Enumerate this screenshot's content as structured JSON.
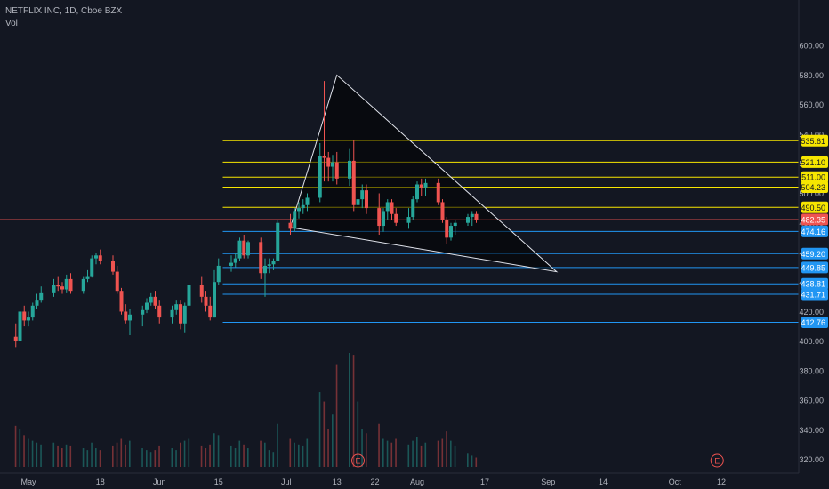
{
  "header": {
    "symbol_line": "NETFLIX INC, 1D, Cboe BZX",
    "vol_label": "Vol"
  },
  "colors": {
    "background": "#131722",
    "up": "#26a69a",
    "down": "#ef5350",
    "yellow_level": "#f7e600",
    "blue_level": "#2196f3",
    "current_line": "#ef5350",
    "triangle": "#e0e3eb",
    "axis_text": "#b2b5be"
  },
  "chart_data": {
    "type": "candlestick",
    "ylim": [
      315,
      620
    ],
    "y_ticks": [
      "600.00",
      "580.00",
      "560.00",
      "540.00",
      "520.00",
      "500.00",
      "480.00",
      "460.00",
      "440.00",
      "420.00",
      "400.00",
      "380.00",
      "360.00",
      "340.00",
      "320.00"
    ],
    "x_ticks": [
      {
        "label": "May",
        "day": 0
      },
      {
        "label": "18",
        "day": 17
      },
      {
        "label": "Jun",
        "day": 31
      },
      {
        "label": "15",
        "day": 45
      },
      {
        "label": "Jul",
        "day": 61
      },
      {
        "label": "13",
        "day": 73
      },
      {
        "label": "22",
        "day": 82
      },
      {
        "label": "Aug",
        "day": 92
      },
      {
        "label": "17",
        "day": 108
      },
      {
        "label": "Sep",
        "day": 123
      },
      {
        "label": "14",
        "day": 136
      },
      {
        "label": "Oct",
        "day": 153
      },
      {
        "label": "12",
        "day": 164
      }
    ],
    "candles": [
      {
        "day": -3,
        "o": 403,
        "h": 412,
        "l": 396,
        "c": 400
      },
      {
        "day": -2,
        "o": 400,
        "h": 422,
        "l": 398,
        "c": 420
      },
      {
        "day": -1,
        "o": 420,
        "h": 424,
        "l": 410,
        "c": 414
      },
      {
        "day": 0,
        "o": 414,
        "h": 420,
        "l": 410,
        "c": 416
      },
      {
        "day": 1,
        "o": 416,
        "h": 426,
        "l": 414,
        "c": 424
      },
      {
        "day": 2,
        "o": 424,
        "h": 432,
        "l": 422,
        "c": 428
      },
      {
        "day": 3,
        "o": 428,
        "h": 437,
        "l": 426,
        "c": 433
      },
      {
        "day": 6,
        "o": 433,
        "h": 442,
        "l": 430,
        "c": 438
      },
      {
        "day": 7,
        "o": 438,
        "h": 444,
        "l": 434,
        "c": 437
      },
      {
        "day": 8,
        "o": 437,
        "h": 440,
        "l": 432,
        "c": 435
      },
      {
        "day": 9,
        "o": 435,
        "h": 445,
        "l": 433,
        "c": 442
      },
      {
        "day": 10,
        "o": 442,
        "h": 446,
        "l": 432,
        "c": 434
      },
      {
        "day": 13,
        "o": 434,
        "h": 444,
        "l": 432,
        "c": 442
      },
      {
        "day": 14,
        "o": 442,
        "h": 448,
        "l": 440,
        "c": 444
      },
      {
        "day": 15,
        "o": 444,
        "h": 458,
        "l": 443,
        "c": 456
      },
      {
        "day": 16,
        "o": 456,
        "h": 460,
        "l": 452,
        "c": 458
      },
      {
        "day": 17,
        "o": 458,
        "h": 462,
        "l": 452,
        "c": 454
      },
      {
        "day": 20,
        "o": 454,
        "h": 458,
        "l": 445,
        "c": 447
      },
      {
        "day": 21,
        "o": 447,
        "h": 451,
        "l": 432,
        "c": 434
      },
      {
        "day": 22,
        "o": 434,
        "h": 436,
        "l": 418,
        "c": 420
      },
      {
        "day": 23,
        "o": 420,
        "h": 425,
        "l": 412,
        "c": 414
      },
      {
        "day": 24,
        "o": 414,
        "h": 422,
        "l": 404,
        "c": 418
      },
      {
        "day": 27,
        "o": 418,
        "h": 424,
        "l": 410,
        "c": 421
      },
      {
        "day": 28,
        "o": 421,
        "h": 429,
        "l": 419,
        "c": 426
      },
      {
        "day": 29,
        "o": 426,
        "h": 433,
        "l": 424,
        "c": 430
      },
      {
        "day": 30,
        "o": 430,
        "h": 434,
        "l": 422,
        "c": 424
      },
      {
        "day": 31,
        "o": 424,
        "h": 428,
        "l": 412,
        "c": 416
      },
      {
        "day": 34,
        "o": 416,
        "h": 424,
        "l": 412,
        "c": 421
      },
      {
        "day": 35,
        "o": 421,
        "h": 428,
        "l": 418,
        "c": 425
      },
      {
        "day": 36,
        "o": 425,
        "h": 428,
        "l": 408,
        "c": 412
      },
      {
        "day": 37,
        "o": 412,
        "h": 426,
        "l": 406,
        "c": 424
      },
      {
        "day": 38,
        "o": 424,
        "h": 440,
        "l": 422,
        "c": 438
      },
      {
        "day": 41,
        "o": 438,
        "h": 444,
        "l": 426,
        "c": 430
      },
      {
        "day": 42,
        "o": 430,
        "h": 434,
        "l": 420,
        "c": 424
      },
      {
        "day": 43,
        "o": 424,
        "h": 430,
        "l": 414,
        "c": 416
      },
      {
        "day": 44,
        "o": 416,
        "h": 448,
        "l": 416,
        "c": 440
      },
      {
        "day": 45,
        "o": 440,
        "h": 456,
        "l": 438,
        "c": 451
      },
      {
        "day": 48,
        "o": 451,
        "h": 458,
        "l": 447,
        "c": 453
      },
      {
        "day": 49,
        "o": 453,
        "h": 460,
        "l": 450,
        "c": 456
      },
      {
        "day": 50,
        "o": 456,
        "h": 470,
        "l": 454,
        "c": 468
      },
      {
        "day": 51,
        "o": 468,
        "h": 472,
        "l": 456,
        "c": 458
      },
      {
        "day": 52,
        "o": 458,
        "h": 468,
        "l": 456,
        "c": 467
      },
      {
        "day": 55,
        "o": 467,
        "h": 470,
        "l": 442,
        "c": 446
      },
      {
        "day": 56,
        "o": 446,
        "h": 456,
        "l": 430,
        "c": 451
      },
      {
        "day": 57,
        "o": 451,
        "h": 456,
        "l": 446,
        "c": 452
      },
      {
        "day": 58,
        "o": 452,
        "h": 456,
        "l": 448,
        "c": 454
      },
      {
        "day": 59,
        "o": 454,
        "h": 482,
        "l": 454,
        "c": 480
      },
      {
        "day": 62,
        "o": 480,
        "h": 486,
        "l": 472,
        "c": 476
      },
      {
        "day": 63,
        "o": 476,
        "h": 490,
        "l": 474,
        "c": 488
      },
      {
        "day": 64,
        "o": 488,
        "h": 494,
        "l": 483,
        "c": 490
      },
      {
        "day": 65,
        "o": 490,
        "h": 496,
        "l": 486,
        "c": 492
      },
      {
        "day": 66,
        "o": 492,
        "h": 500,
        "l": 488,
        "c": 497
      },
      {
        "day": 69,
        "o": 497,
        "h": 534,
        "l": 494,
        "c": 525
      },
      {
        "day": 70,
        "o": 525,
        "h": 576,
        "l": 508,
        "c": 524
      },
      {
        "day": 71,
        "o": 524,
        "h": 528,
        "l": 508,
        "c": 518
      },
      {
        "day": 72,
        "o": 518,
        "h": 526,
        "l": 508,
        "c": 521
      },
      {
        "day": 73,
        "o": 521,
        "h": 528,
        "l": 506,
        "c": 510
      },
      {
        "day": 76,
        "o": 510,
        "h": 530,
        "l": 505,
        "c": 522
      },
      {
        "day": 77,
        "o": 522,
        "h": 536,
        "l": 488,
        "c": 492
      },
      {
        "day": 78,
        "o": 492,
        "h": 500,
        "l": 486,
        "c": 496
      },
      {
        "day": 79,
        "o": 496,
        "h": 506,
        "l": 490,
        "c": 502
      },
      {
        "day": 80,
        "o": 502,
        "h": 506,
        "l": 486,
        "c": 490
      },
      {
        "day": 83,
        "o": 490,
        "h": 500,
        "l": 472,
        "c": 478
      },
      {
        "day": 84,
        "o": 478,
        "h": 490,
        "l": 474,
        "c": 488
      },
      {
        "day": 85,
        "o": 488,
        "h": 496,
        "l": 482,
        "c": 494
      },
      {
        "day": 86,
        "o": 494,
        "h": 496,
        "l": 482,
        "c": 486
      },
      {
        "day": 87,
        "o": 486,
        "h": 490,
        "l": 478,
        "c": 480
      },
      {
        "day": 90,
        "o": 480,
        "h": 490,
        "l": 476,
        "c": 484
      },
      {
        "day": 91,
        "o": 484,
        "h": 498,
        "l": 482,
        "c": 496
      },
      {
        "day": 92,
        "o": 496,
        "h": 508,
        "l": 494,
        "c": 506
      },
      {
        "day": 93,
        "o": 506,
        "h": 510,
        "l": 498,
        "c": 504
      },
      {
        "day": 94,
        "o": 504,
        "h": 510,
        "l": 498,
        "c": 507
      },
      {
        "day": 97,
        "o": 507,
        "h": 510,
        "l": 492,
        "c": 494
      },
      {
        "day": 98,
        "o": 494,
        "h": 496,
        "l": 480,
        "c": 482
      },
      {
        "day": 99,
        "o": 482,
        "h": 484,
        "l": 466,
        "c": 470
      },
      {
        "day": 100,
        "o": 470,
        "h": 480,
        "l": 468,
        "c": 478
      },
      {
        "day": 101,
        "o": 478,
        "h": 482,
        "l": 472,
        "c": 480
      },
      {
        "day": 104,
        "o": 480,
        "h": 486,
        "l": 478,
        "c": 484
      },
      {
        "day": 105,
        "o": 484,
        "h": 488,
        "l": 478,
        "c": 486
      },
      {
        "day": 106,
        "o": 486,
        "h": 488,
        "l": 480,
        "c": 482
      }
    ],
    "volume": [
      {
        "day": -3,
        "v": 44,
        "up": false
      },
      {
        "day": -2,
        "v": 40,
        "up": true
      },
      {
        "day": -1,
        "v": 34,
        "up": false
      },
      {
        "day": 0,
        "v": 30,
        "up": true
      },
      {
        "day": 1,
        "v": 28,
        "up": true
      },
      {
        "day": 2,
        "v": 26,
        "up": true
      },
      {
        "day": 3,
        "v": 24,
        "up": true
      },
      {
        "day": 6,
        "v": 26,
        "up": true
      },
      {
        "day": 7,
        "v": 22,
        "up": false
      },
      {
        "day": 8,
        "v": 20,
        "up": false
      },
      {
        "day": 9,
        "v": 24,
        "up": true
      },
      {
        "day": 10,
        "v": 22,
        "up": false
      },
      {
        "day": 13,
        "v": 20,
        "up": true
      },
      {
        "day": 14,
        "v": 18,
        "up": true
      },
      {
        "day": 15,
        "v": 26,
        "up": true
      },
      {
        "day": 16,
        "v": 20,
        "up": true
      },
      {
        "day": 17,
        "v": 18,
        "up": false
      },
      {
        "day": 20,
        "v": 22,
        "up": false
      },
      {
        "day": 21,
        "v": 26,
        "up": false
      },
      {
        "day": 22,
        "v": 30,
        "up": false
      },
      {
        "day": 23,
        "v": 24,
        "up": false
      },
      {
        "day": 24,
        "v": 28,
        "up": true
      },
      {
        "day": 27,
        "v": 20,
        "up": true
      },
      {
        "day": 28,
        "v": 18,
        "up": true
      },
      {
        "day": 29,
        "v": 16,
        "up": true
      },
      {
        "day": 30,
        "v": 18,
        "up": false
      },
      {
        "day": 31,
        "v": 22,
        "up": false
      },
      {
        "day": 34,
        "v": 20,
        "up": true
      },
      {
        "day": 35,
        "v": 18,
        "up": true
      },
      {
        "day": 36,
        "v": 26,
        "up": false
      },
      {
        "day": 37,
        "v": 28,
        "up": true
      },
      {
        "day": 38,
        "v": 30,
        "up": true
      },
      {
        "day": 41,
        "v": 22,
        "up": false
      },
      {
        "day": 42,
        "v": 20,
        "up": false
      },
      {
        "day": 43,
        "v": 24,
        "up": false
      },
      {
        "day": 44,
        "v": 36,
        "up": true
      },
      {
        "day": 45,
        "v": 34,
        "up": true
      },
      {
        "day": 48,
        "v": 22,
        "up": true
      },
      {
        "day": 49,
        "v": 20,
        "up": true
      },
      {
        "day": 50,
        "v": 28,
        "up": true
      },
      {
        "day": 51,
        "v": 24,
        "up": false
      },
      {
        "day": 52,
        "v": 20,
        "up": true
      },
      {
        "day": 55,
        "v": 28,
        "up": false
      },
      {
        "day": 56,
        "v": 26,
        "up": true
      },
      {
        "day": 57,
        "v": 18,
        "up": true
      },
      {
        "day": 58,
        "v": 16,
        "up": true
      },
      {
        "day": 59,
        "v": 46,
        "up": true
      },
      {
        "day": 62,
        "v": 30,
        "up": false
      },
      {
        "day": 63,
        "v": 26,
        "up": true
      },
      {
        "day": 64,
        "v": 24,
        "up": true
      },
      {
        "day": 65,
        "v": 22,
        "up": true
      },
      {
        "day": 66,
        "v": 30,
        "up": true
      },
      {
        "day": 69,
        "v": 80,
        "up": true
      },
      {
        "day": 70,
        "v": 70,
        "up": false
      },
      {
        "day": 71,
        "v": 40,
        "up": false
      },
      {
        "day": 72,
        "v": 56,
        "up": true
      },
      {
        "day": 73,
        "v": 110,
        "up": false
      },
      {
        "day": 76,
        "v": 122,
        "up": true
      },
      {
        "day": 77,
        "v": 120,
        "up": false
      },
      {
        "day": 78,
        "v": 70,
        "up": true
      },
      {
        "day": 79,
        "v": 40,
        "up": true
      },
      {
        "day": 80,
        "v": 36,
        "up": false
      },
      {
        "day": 83,
        "v": 46,
        "up": false
      },
      {
        "day": 84,
        "v": 30,
        "up": true
      },
      {
        "day": 85,
        "v": 28,
        "up": true
      },
      {
        "day": 86,
        "v": 26,
        "up": false
      },
      {
        "day": 87,
        "v": 30,
        "up": false
      },
      {
        "day": 90,
        "v": 24,
        "up": true
      },
      {
        "day": 91,
        "v": 28,
        "up": true
      },
      {
        "day": 92,
        "v": 32,
        "up": true
      },
      {
        "day": 93,
        "v": 22,
        "up": false
      },
      {
        "day": 94,
        "v": 26,
        "up": true
      },
      {
        "day": 97,
        "v": 28,
        "up": false
      },
      {
        "day": 98,
        "v": 30,
        "up": false
      },
      {
        "day": 99,
        "v": 38,
        "up": false
      },
      {
        "day": 100,
        "v": 28,
        "up": true
      },
      {
        "day": 101,
        "v": 22,
        "up": true
      },
      {
        "day": 104,
        "v": 14,
        "up": true
      },
      {
        "day": 105,
        "v": 12,
        "up": true
      },
      {
        "day": 106,
        "v": 10,
        "up": false
      }
    ],
    "levels": [
      {
        "price": 535.61,
        "label": "535.61",
        "kind": "resistance"
      },
      {
        "price": 521.1,
        "label": "521.10",
        "kind": "resistance"
      },
      {
        "price": 511.0,
        "label": "511.00",
        "kind": "resistance"
      },
      {
        "price": 504.23,
        "label": "504.23",
        "kind": "resistance"
      },
      {
        "price": 490.5,
        "label": "490.50",
        "kind": "resistance"
      },
      {
        "price": 474.16,
        "label": "474.16",
        "kind": "support"
      },
      {
        "price": 459.2,
        "label": "459.20",
        "kind": "support"
      },
      {
        "price": 449.85,
        "label": "449.85",
        "kind": "support"
      },
      {
        "price": 438.81,
        "label": "438.81",
        "kind": "support"
      },
      {
        "price": 431.71,
        "label": "431.71",
        "kind": "support"
      },
      {
        "price": 412.76,
        "label": "412.76",
        "kind": "support"
      }
    ],
    "current_price": {
      "price": 482.35,
      "label": "482.35"
    },
    "triangle": [
      {
        "day": 73,
        "price": 580
      },
      {
        "day": 62,
        "price": 477
      },
      {
        "day": 125,
        "price": 447
      }
    ],
    "earnings_markers": [
      {
        "day": 78,
        "label": "E"
      },
      {
        "day": 163,
        "label": "E"
      }
    ],
    "levels_start_day": 46
  }
}
